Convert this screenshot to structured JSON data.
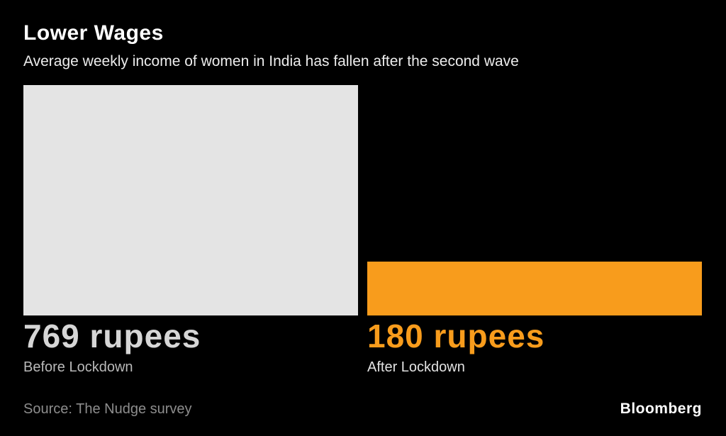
{
  "header": {
    "title": "Lower Wages",
    "subtitle": "Average weekly income of women in India has fallen after the second wave"
  },
  "chart_data": {
    "type": "bar",
    "categories": [
      "Before Lockdown",
      "After Lockdown"
    ],
    "values": [
      769,
      180
    ],
    "unit": "rupees",
    "value_labels": [
      "769 rupees",
      "180 rupees"
    ],
    "bar_colors": [
      "#e4e4e4",
      "#f89c1c"
    ],
    "value_label_colors": [
      "#d6d6d6",
      "#f89c1c"
    ],
    "title": "Lower Wages",
    "xlabel": "",
    "ylabel": "",
    "ylim": [
      0,
      769
    ],
    "grid": false,
    "legend": "none",
    "background": "#000000"
  },
  "footer": {
    "source": "Source: The Nudge survey",
    "brand": "Bloomberg"
  }
}
